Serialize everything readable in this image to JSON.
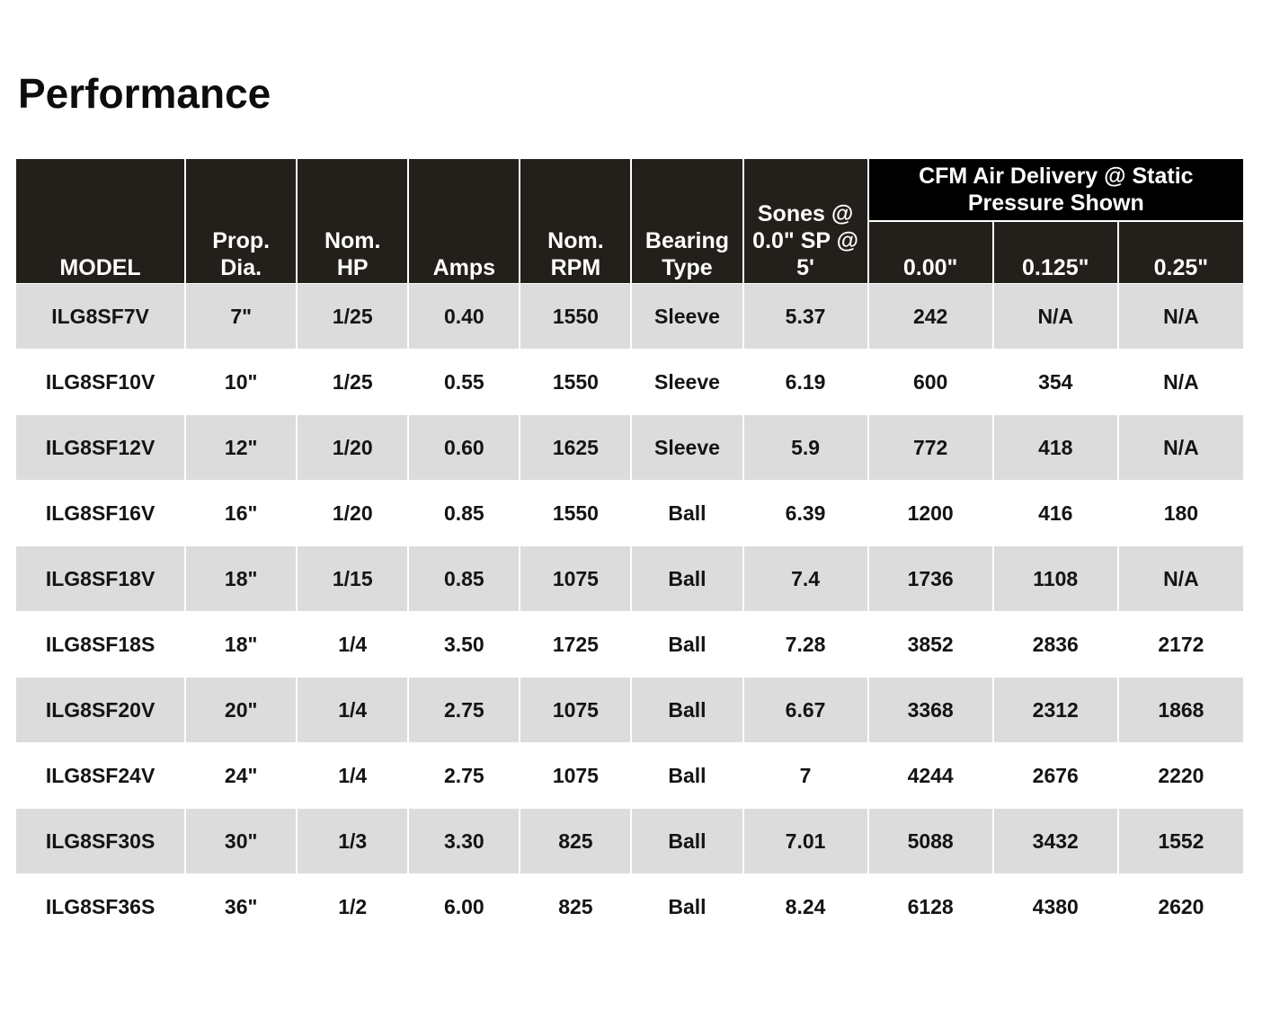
{
  "title": "Performance",
  "headers": {
    "model": "MODEL",
    "prop_dia": [
      "Prop.",
      "Dia."
    ],
    "nom_hp": [
      "Nom.",
      "HP"
    ],
    "amps": "Amps",
    "nom_rpm": [
      "Nom.",
      "RPM"
    ],
    "bearing_type": [
      "Bearing",
      "Type"
    ],
    "sones": [
      "Sones @",
      "0.0\" SP @",
      "5'"
    ],
    "cfm_group": [
      "CFM Air Delivery @ Static",
      "Pressure Shown"
    ],
    "sp": [
      "0.00\"",
      "0.125\"",
      "0.25\""
    ]
  },
  "rows": [
    [
      "ILG8SF7V",
      "7\"",
      "1/25",
      "0.40",
      "1550",
      "Sleeve",
      "5.37",
      "242",
      "N/A",
      "N/A"
    ],
    [
      "ILG8SF10V",
      "10\"",
      "1/25",
      "0.55",
      "1550",
      "Sleeve",
      "6.19",
      "600",
      "354",
      "N/A"
    ],
    [
      "ILG8SF12V",
      "12\"",
      "1/20",
      "0.60",
      "1625",
      "Sleeve",
      "5.9",
      "772",
      "418",
      "N/A"
    ],
    [
      "ILG8SF16V",
      "16\"",
      "1/20",
      "0.85",
      "1550",
      "Ball",
      "6.39",
      "1200",
      "416",
      "180"
    ],
    [
      "ILG8SF18V",
      "18\"",
      "1/15",
      "0.85",
      "1075",
      "Ball",
      "7.4",
      "1736",
      "1108",
      "N/A"
    ],
    [
      "ILG8SF18S",
      "18\"",
      "1/4",
      "3.50",
      "1725",
      "Ball",
      "7.28",
      "3852",
      "2836",
      "2172"
    ],
    [
      "ILG8SF20V",
      "20\"",
      "1/4",
      "2.75",
      "1075",
      "Ball",
      "6.67",
      "3368",
      "2312",
      "1868"
    ],
    [
      "ILG8SF24V",
      "24\"",
      "1/4",
      "2.75",
      "1075",
      "Ball",
      "7",
      "4244",
      "2676",
      "2220"
    ],
    [
      "ILG8SF30S",
      "30\"",
      "1/3",
      "3.30",
      "825",
      "Ball",
      "7.01",
      "5088",
      "3432",
      "1552"
    ],
    [
      "ILG8SF36S",
      "36\"",
      "1/2",
      "6.00",
      "825",
      "Ball",
      "8.24",
      "6128",
      "4380",
      "2620"
    ]
  ]
}
